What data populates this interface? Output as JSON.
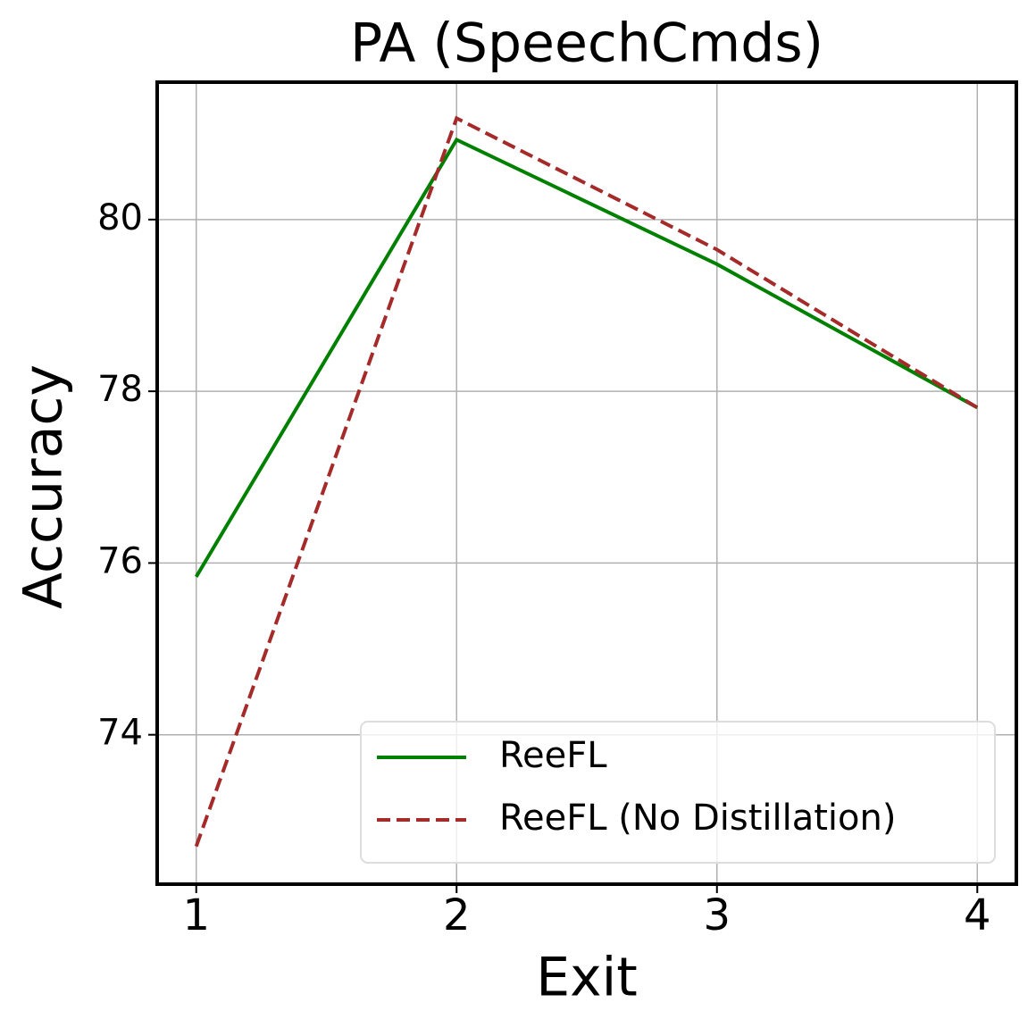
{
  "chart_data": {
    "type": "line",
    "title": "PA (SpeechCmds)",
    "x_label": "Exit",
    "y_label": "Accuracy",
    "x": [
      1,
      2,
      3,
      4
    ],
    "series": [
      {
        "name": "ReeFL",
        "color": "#008000",
        "dash": "solid",
        "values": [
          75.84,
          80.93,
          79.48,
          77.81
        ]
      },
      {
        "name": "ReeFL (No Distillation)",
        "color": "#a52a2a",
        "dash": "dashed",
        "values": [
          72.7,
          81.18,
          79.65,
          77.81
        ]
      }
    ],
    "xlim": [
      0.85,
      4.15
    ],
    "xticks": [
      1,
      2,
      3,
      4
    ],
    "ylim": [
      72.26,
      81.6
    ],
    "yticks": [
      74,
      76,
      78,
      80
    ],
    "grid": true,
    "legend": "lower right"
  }
}
